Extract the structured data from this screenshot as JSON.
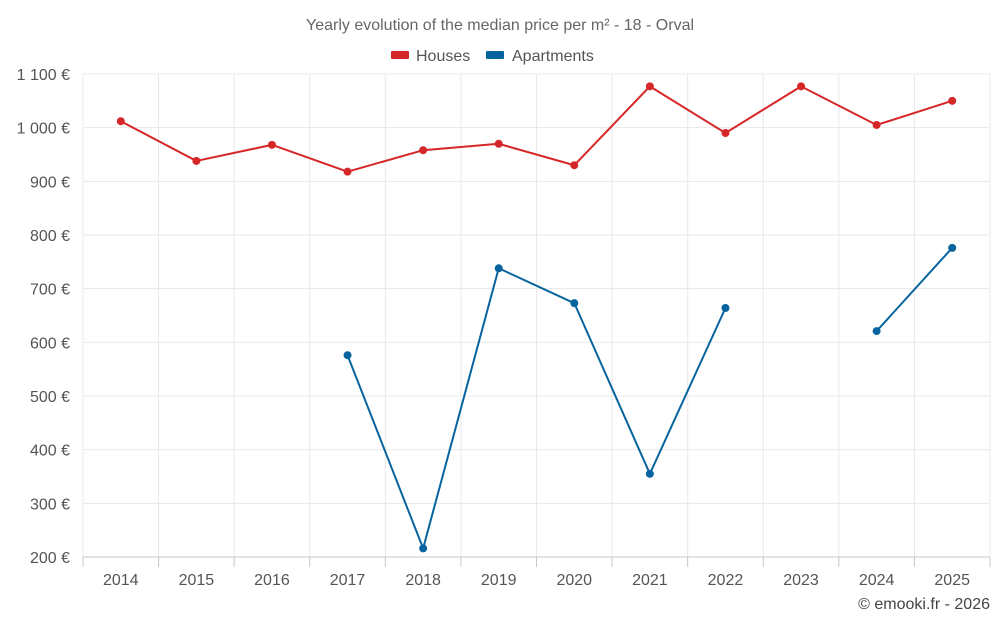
{
  "chart_data": {
    "type": "line",
    "title": "Yearly evolution of the median price per m² - 18 - Orval",
    "categories": [
      "2014",
      "2015",
      "2016",
      "2017",
      "2018",
      "2019",
      "2020",
      "2021",
      "2022",
      "2023",
      "2024",
      "2025"
    ],
    "series": [
      {
        "name": "Houses",
        "color": "#d62728",
        "values": [
          1012,
          938,
          968,
          918,
          958,
          970,
          930,
          1077,
          990,
          1077,
          1005,
          1050
        ]
      },
      {
        "name": "Apartments",
        "color": "#08649e",
        "values": [
          null,
          null,
          null,
          576,
          216,
          738,
          673,
          355,
          664,
          null,
          621,
          776
        ]
      }
    ],
    "ylim": [
      200,
      1100
    ],
    "yticks": [
      200,
      300,
      400,
      500,
      600,
      700,
      800,
      900,
      1000,
      1100
    ],
    "ytick_labels": [
      "200 €",
      "300 €",
      "400 €",
      "500 €",
      "600 €",
      "700 €",
      "800 €",
      "900 €",
      "1 000 €",
      "1 100 €"
    ],
    "xlabel": "",
    "ylabel": "",
    "grid": true,
    "legend_position": "top-center"
  },
  "credit": "© emooki.fr - 2026"
}
